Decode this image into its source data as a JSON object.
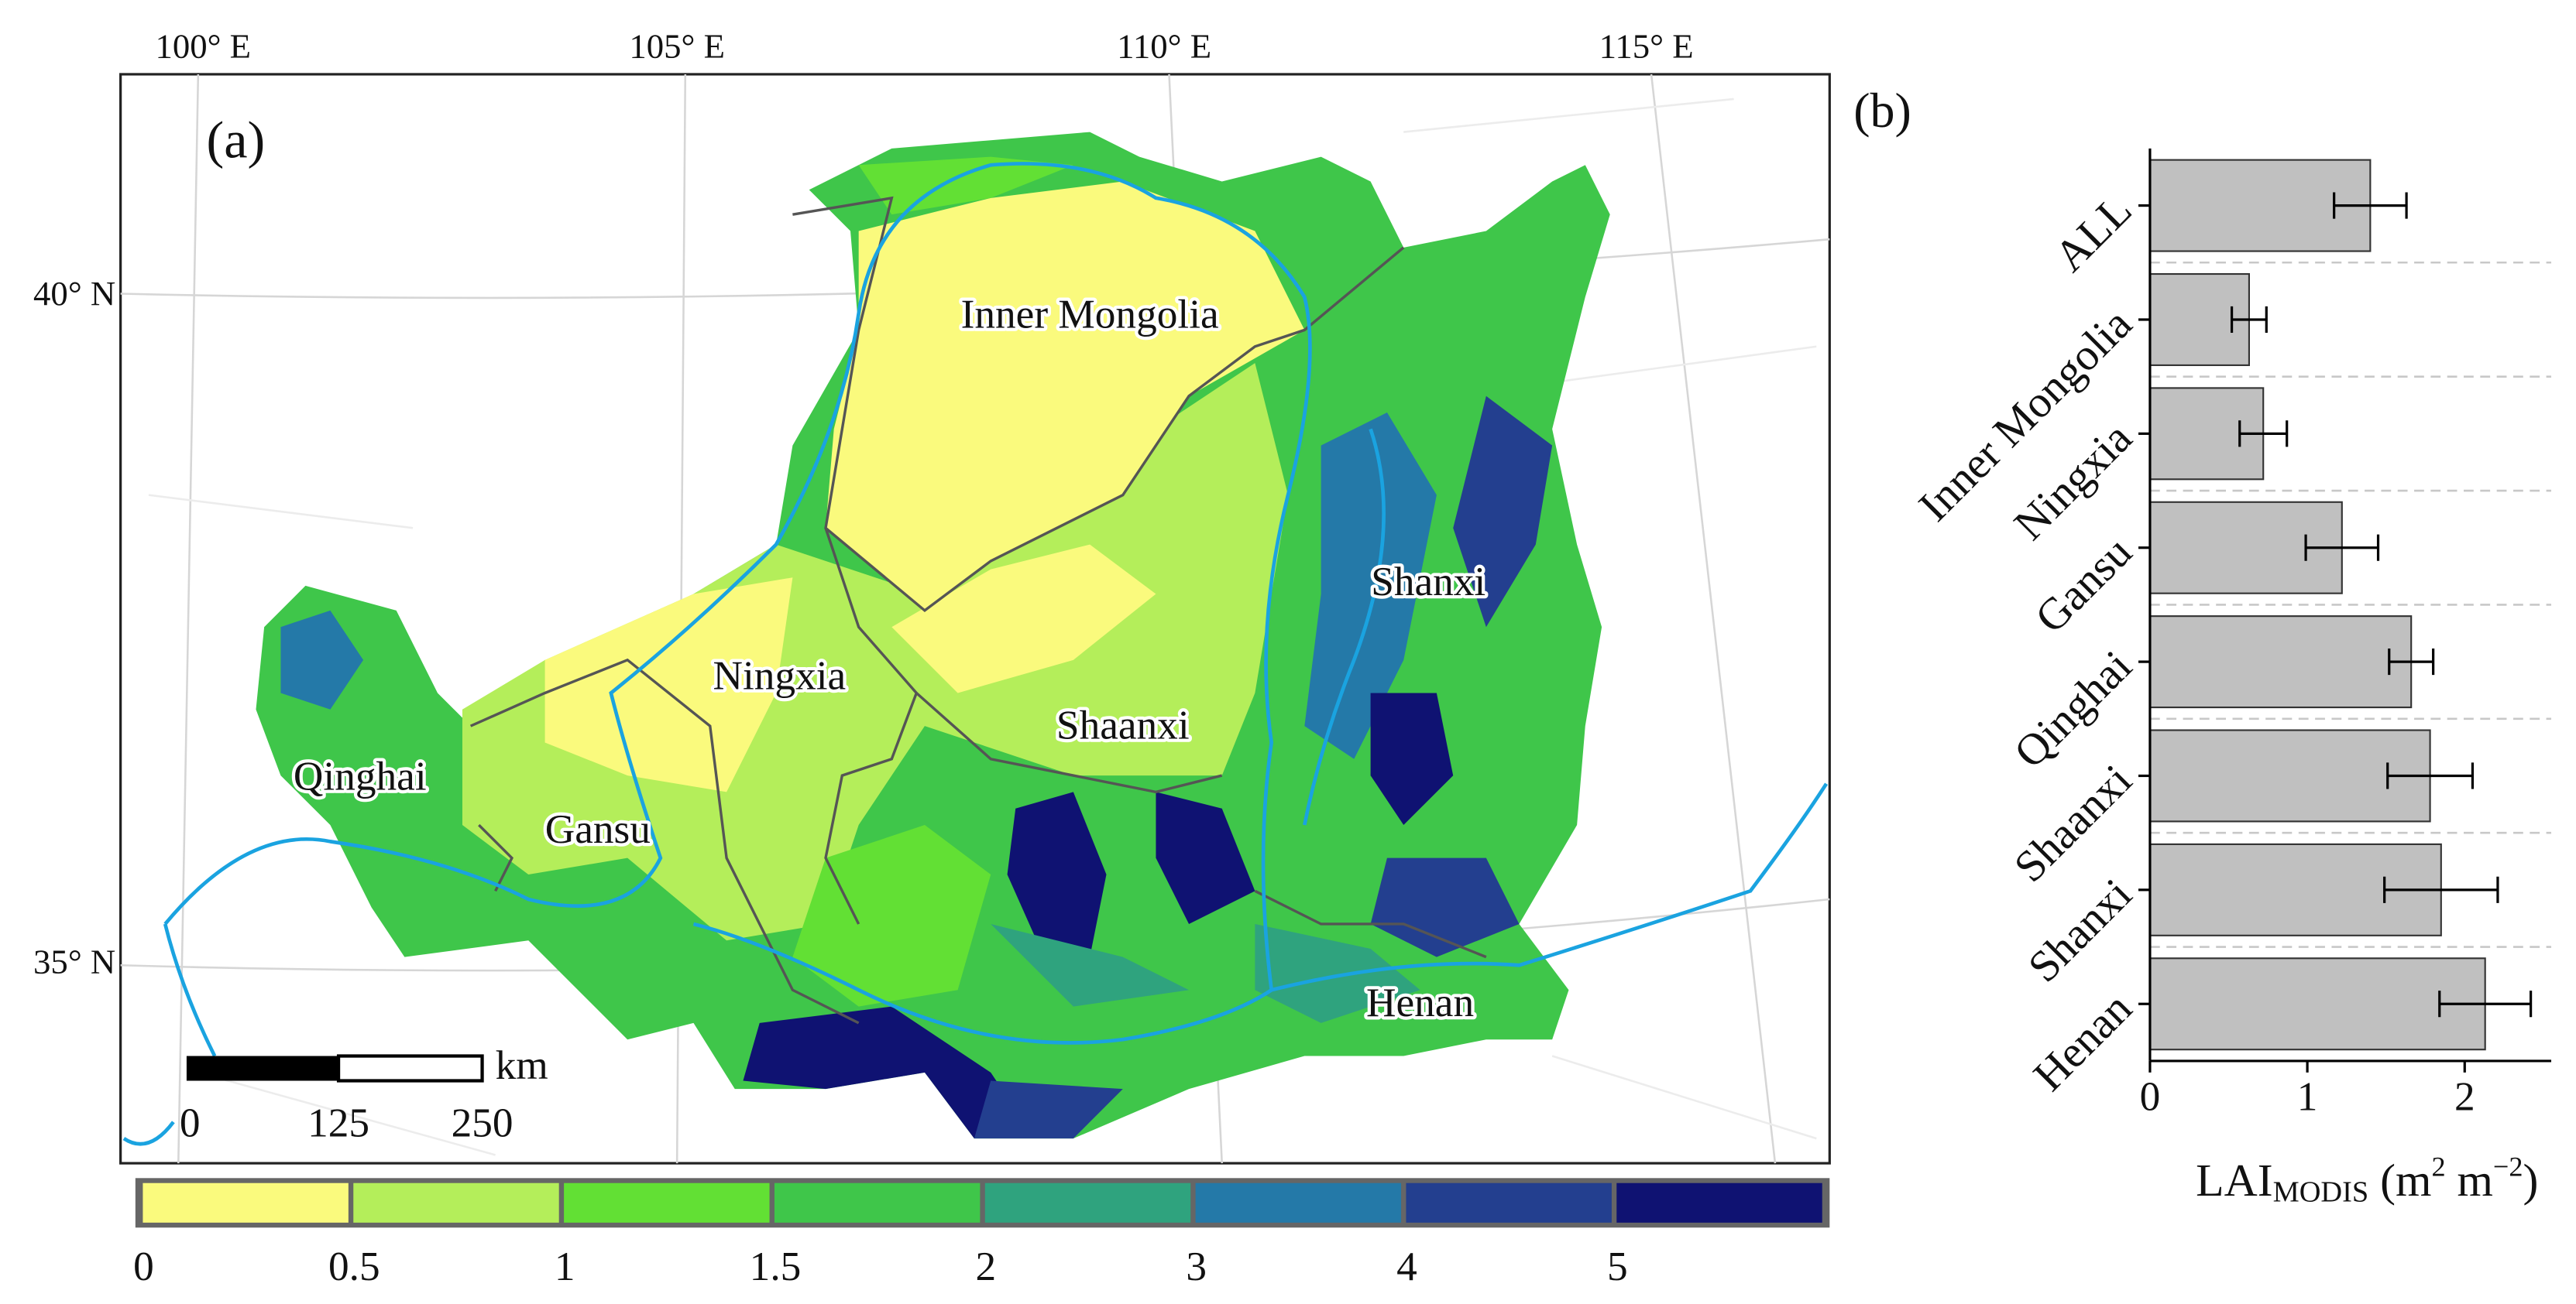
{
  "map": {
    "panel_label": "(a)",
    "lon_labels": [
      "100° E",
      "105° E",
      "110° E",
      "115° E"
    ],
    "lat_labels": [
      "40° N",
      "35° N"
    ],
    "regions": [
      "Inner Mongolia",
      "Shanxi",
      "Ningxia",
      "Shaanxi",
      "Qinghai",
      "Gansu",
      "Henan"
    ],
    "scale_bar": {
      "unit": "km",
      "labels": [
        "0",
        "125",
        "250"
      ]
    },
    "colorbar": {
      "colors": [
        "#fafa7d",
        "#b4ee5a",
        "#62e034",
        "#3fc64a",
        "#2fa37e",
        "#2479a8",
        "#233f8f",
        "#0f1272"
      ],
      "labels": [
        "0",
        "0.5",
        "1",
        "1.5",
        "2",
        "3",
        "4",
        "5"
      ]
    }
  },
  "chart_data": {
    "type": "barh",
    "panel_label": "(b)",
    "categories": [
      "ALL",
      "Inner Mongolia",
      "Ningxia",
      "Gansu",
      "Qinghai",
      "Shaanxi",
      "Shanxi",
      "Henan"
    ],
    "values": [
      1.4,
      0.63,
      0.72,
      1.22,
      1.66,
      1.78,
      1.85,
      2.13
    ],
    "errors": [
      0.23,
      0.11,
      0.15,
      0.23,
      0.14,
      0.27,
      0.36,
      0.29
    ],
    "color": "#c0c0c0",
    "xlim": [
      0,
      2.55
    ],
    "xticks": [
      0,
      1,
      2
    ],
    "xlabel": [
      "LAI",
      "MODIS",
      " (m",
      "2",
      " m",
      "−2",
      ")"
    ],
    "grid": true
  }
}
